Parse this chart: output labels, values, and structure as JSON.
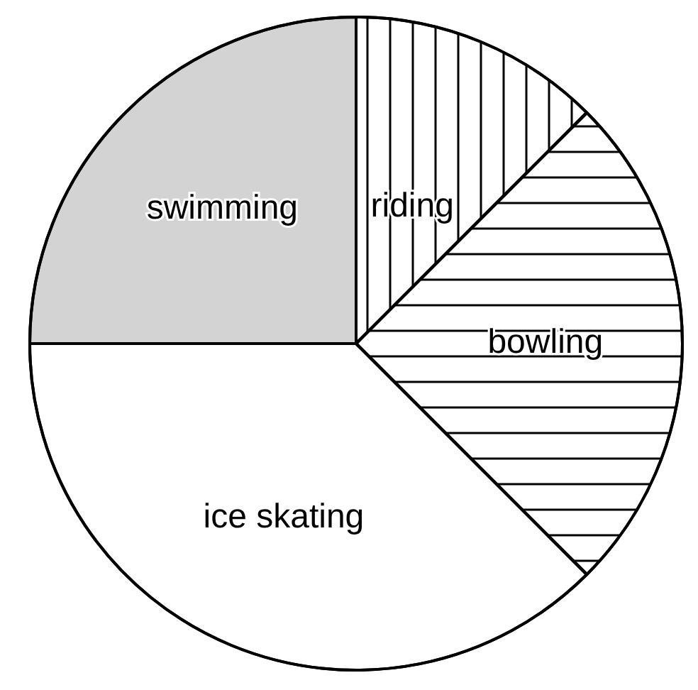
{
  "chart_data": {
    "type": "pie",
    "categories": [
      "riding",
      "bowling",
      "ice skating",
      "swimming"
    ],
    "values": [
      12.5,
      25,
      37.5,
      25
    ],
    "colors": [
      "#ffffff",
      "#ffffff",
      "#ffffff",
      "#d3d3d3"
    ]
  }
}
